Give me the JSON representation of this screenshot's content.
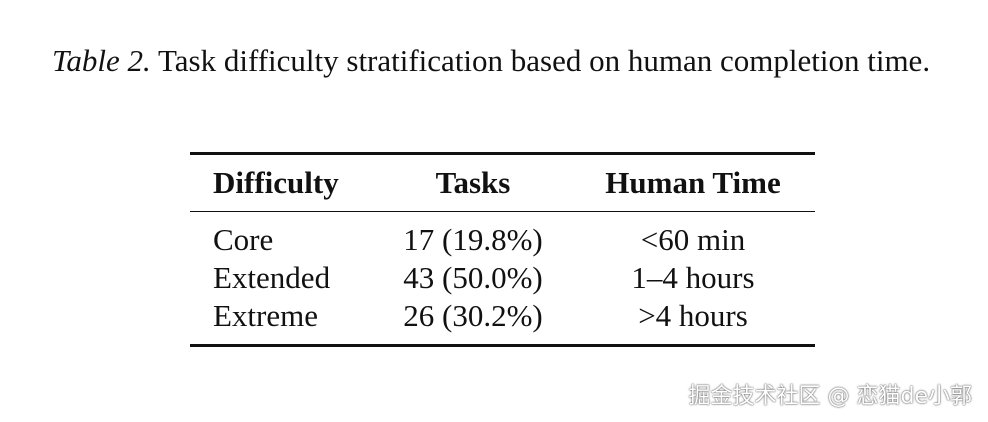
{
  "caption": {
    "label": "Table 2.",
    "text": "Task difficulty stratification based on human completion time."
  },
  "table": {
    "columns": [
      "Difficulty",
      "Tasks",
      "Human Time"
    ],
    "rows": [
      [
        "Core",
        "17 (19.8%)",
        "<60 min"
      ],
      [
        "Extended",
        "43 (50.0%)",
        "1–4 hours"
      ],
      [
        "Extreme",
        "26 (30.2%)",
        ">4 hours"
      ]
    ]
  },
  "watermark": "掘金技术社区 @ 恋猫de小郭"
}
